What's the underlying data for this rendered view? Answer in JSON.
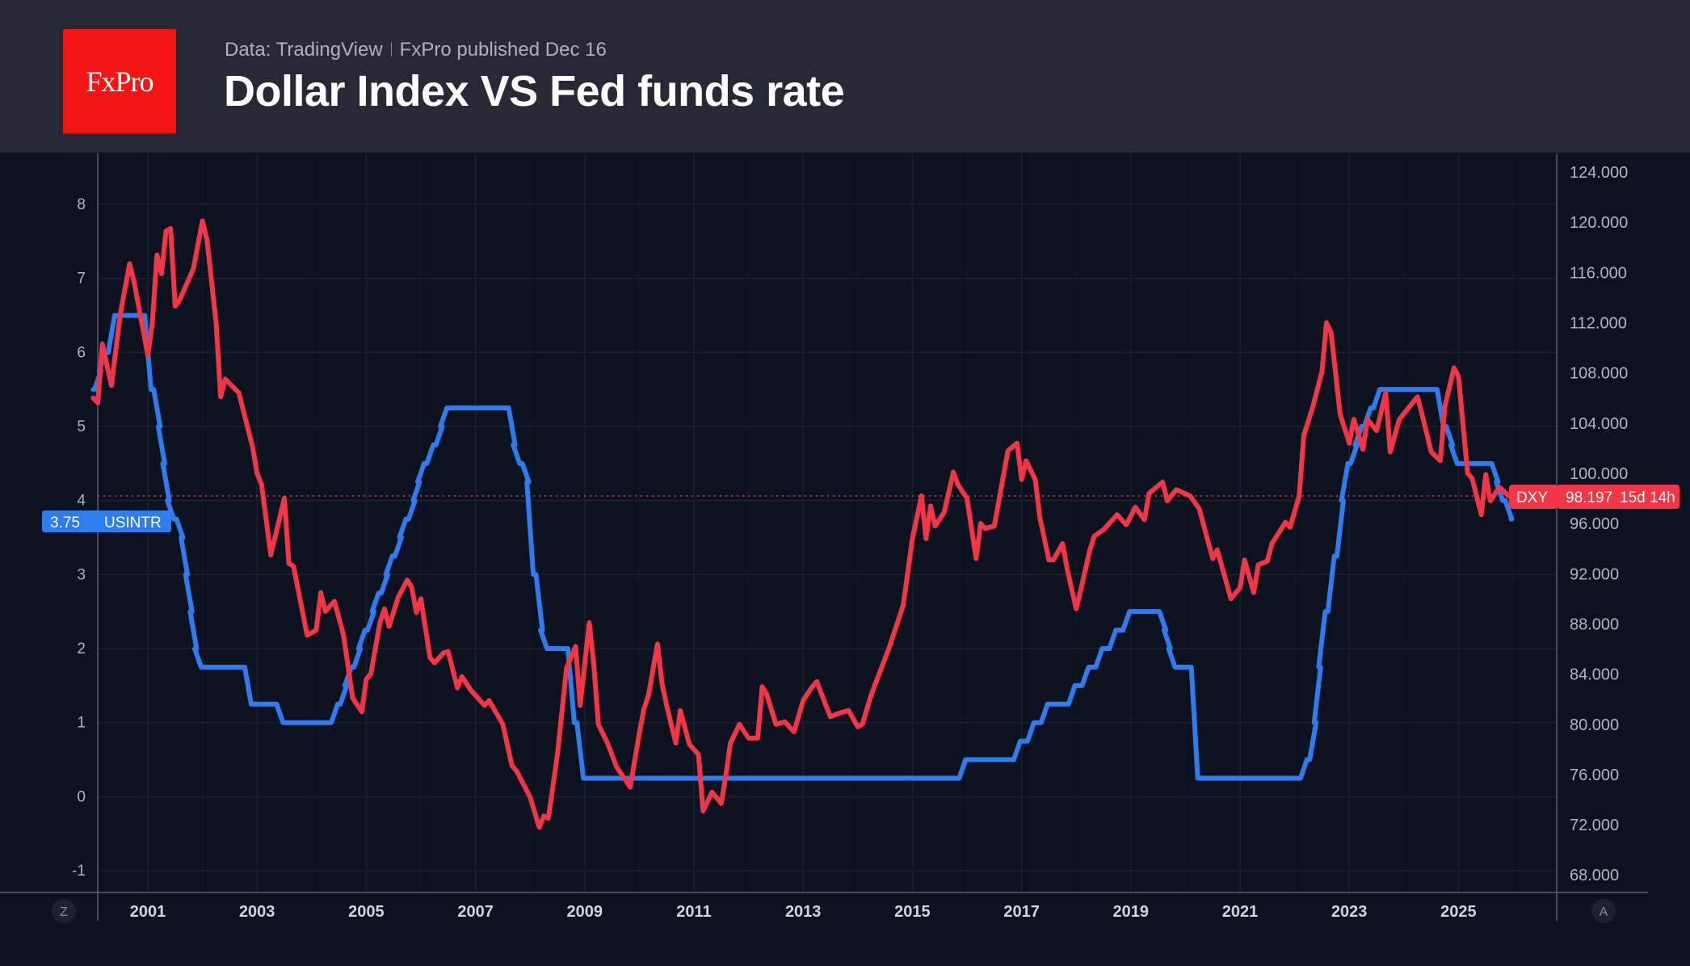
{
  "header": {
    "logo_text": "FxPro",
    "source": "Data: TradingView",
    "published": "FxPro published Dec 16",
    "title": "Dollar Index VS Fed funds rate"
  },
  "controls": {
    "left_button": "Z",
    "right_button": "A"
  },
  "chart_data": {
    "type": "line",
    "title": "Dollar Index VS Fed funds rate",
    "x_ticks": [
      "2001",
      "2003",
      "2005",
      "2007",
      "2009",
      "2011",
      "2013",
      "2015",
      "2017",
      "2019",
      "2021",
      "2023",
      "2025"
    ],
    "left_axis": {
      "ticks": [
        "-1",
        "0",
        "1",
        "2",
        "3",
        "4",
        "5",
        "6",
        "7",
        "8"
      ],
      "range": [
        -1.3,
        8.9
      ]
    },
    "right_axis": {
      "ticks": [
        "68.000",
        "72.000",
        "76.000",
        "80.000",
        "84.000",
        "88.000",
        "92.000",
        "96.000",
        "100.000",
        "104.000",
        "108.000",
        "112.000",
        "116.000",
        "120.000",
        "124.000"
      ],
      "range": [
        67,
        126
      ]
    },
    "grid": true,
    "colors": {
      "USINTR": "#2f7bf0",
      "DXY": "#f23645"
    },
    "series": [
      {
        "name": "USINTR",
        "axis": "left",
        "step": true,
        "last_value_label": "3.75",
        "points": [
          [
            "2000-01",
            5.5
          ],
          [
            "2000-02",
            5.75
          ],
          [
            "2000-03",
            6.0
          ],
          [
            "2000-05",
            6.5
          ],
          [
            "2001-01",
            5.5
          ],
          [
            "2001-03",
            5.0
          ],
          [
            "2001-04",
            4.5
          ],
          [
            "2001-05",
            4.0
          ],
          [
            "2001-06",
            3.75
          ],
          [
            "2001-08",
            3.5
          ],
          [
            "2001-09",
            3.0
          ],
          [
            "2001-10",
            2.5
          ],
          [
            "2001-11",
            2.0
          ],
          [
            "2001-12",
            1.75
          ],
          [
            "2002-11",
            1.25
          ],
          [
            "2003-06",
            1.0
          ],
          [
            "2004-06",
            1.25
          ],
          [
            "2004-08",
            1.5
          ],
          [
            "2004-09",
            1.75
          ],
          [
            "2004-11",
            2.0
          ],
          [
            "2004-12",
            2.25
          ],
          [
            "2005-02",
            2.5
          ],
          [
            "2005-03",
            2.75
          ],
          [
            "2005-05",
            3.0
          ],
          [
            "2005-06",
            3.25
          ],
          [
            "2005-08",
            3.5
          ],
          [
            "2005-09",
            3.75
          ],
          [
            "2005-11",
            4.0
          ],
          [
            "2005-12",
            4.25
          ],
          [
            "2006-01",
            4.5
          ],
          [
            "2006-03",
            4.75
          ],
          [
            "2006-05",
            5.0
          ],
          [
            "2006-06",
            5.25
          ],
          [
            "2007-09",
            4.75
          ],
          [
            "2007-10",
            4.5
          ],
          [
            "2007-12",
            4.25
          ],
          [
            "2008-01",
            3.0
          ],
          [
            "2008-03",
            2.25
          ],
          [
            "2008-04",
            2.0
          ],
          [
            "2008-10",
            1.0
          ],
          [
            "2008-12",
            0.25
          ],
          [
            "2015-12",
            0.5
          ],
          [
            "2016-12",
            0.75
          ],
          [
            "2017-03",
            1.0
          ],
          [
            "2017-06",
            1.25
          ],
          [
            "2017-12",
            1.5
          ],
          [
            "2018-03",
            1.75
          ],
          [
            "2018-06",
            2.0
          ],
          [
            "2018-09",
            2.25
          ],
          [
            "2018-12",
            2.5
          ],
          [
            "2019-08",
            2.25
          ],
          [
            "2019-09",
            2.0
          ],
          [
            "2019-10",
            1.75
          ],
          [
            "2020-03",
            0.25
          ],
          [
            "2022-03",
            0.5
          ],
          [
            "2022-05",
            1.0
          ],
          [
            "2022-06",
            1.75
          ],
          [
            "2022-07",
            2.5
          ],
          [
            "2022-09",
            3.25
          ],
          [
            "2022-11",
            4.0
          ],
          [
            "2022-12",
            4.5
          ],
          [
            "2023-02",
            4.75
          ],
          [
            "2023-03",
            5.0
          ],
          [
            "2023-05",
            5.25
          ],
          [
            "2023-07",
            5.5
          ],
          [
            "2024-09",
            5.0
          ],
          [
            "2024-11",
            4.75
          ],
          [
            "2024-12",
            4.5
          ],
          [
            "2025-09",
            4.25
          ],
          [
            "2025-10",
            4.0
          ],
          [
            "2025-12",
            3.75
          ]
        ]
      },
      {
        "name": "DXY",
        "axis": "right",
        "last_value_label": "98.197",
        "countdown": "15d 14h",
        "last_value": 98.197,
        "points": [
          [
            "2000-01",
            106
          ],
          [
            "2000-02",
            105.6
          ],
          [
            "2000-03",
            110.3
          ],
          [
            "2000-05",
            107
          ],
          [
            "2000-07",
            112.8
          ],
          [
            "2000-09",
            116.7
          ],
          [
            "2000-10",
            115.2
          ],
          [
            "2001-01",
            109.4
          ],
          [
            "2001-02",
            112
          ],
          [
            "2001-03",
            117.4
          ],
          [
            "2001-04",
            115.9
          ],
          [
            "2001-05",
            119.3
          ],
          [
            "2001-06",
            119.5
          ],
          [
            "2001-07",
            113.3
          ],
          [
            "2001-08",
            113.8
          ],
          [
            "2001-11",
            116.3
          ],
          [
            "2002-01",
            120.1
          ],
          [
            "2002-02",
            118.6
          ],
          [
            "2002-04",
            112
          ],
          [
            "2002-05",
            106.1
          ],
          [
            "2002-06",
            107.5
          ],
          [
            "2002-09",
            106.4
          ],
          [
            "2002-12",
            102.1
          ],
          [
            "2003-01",
            100
          ],
          [
            "2003-02",
            99.1
          ],
          [
            "2003-04",
            93.5
          ],
          [
            "2003-07",
            98
          ],
          [
            "2003-08",
            92.8
          ],
          [
            "2003-09",
            92.6
          ],
          [
            "2003-12",
            87.1
          ],
          [
            "2004-02",
            87.5
          ],
          [
            "2004-03",
            90.5
          ],
          [
            "2004-04",
            89
          ],
          [
            "2004-06",
            89.8
          ],
          [
            "2004-08",
            87.1
          ],
          [
            "2004-10",
            82.1
          ],
          [
            "2004-12",
            81
          ],
          [
            "2005-01",
            83.6
          ],
          [
            "2005-02",
            84
          ],
          [
            "2005-04",
            88.1
          ],
          [
            "2005-05",
            89.2
          ],
          [
            "2005-06",
            87.8
          ],
          [
            "2005-08",
            90.1
          ],
          [
            "2005-10",
            91.5
          ],
          [
            "2005-11",
            90.9
          ],
          [
            "2005-12",
            88.9
          ],
          [
            "2006-01",
            90
          ],
          [
            "2006-03",
            85.3
          ],
          [
            "2006-04",
            84.9
          ],
          [
            "2006-06",
            85.7
          ],
          [
            "2006-07",
            85.8
          ],
          [
            "2006-09",
            82.9
          ],
          [
            "2006-10",
            83.8
          ],
          [
            "2006-12",
            82.7
          ],
          [
            "2007-03",
            81.5
          ],
          [
            "2007-04",
            81.9
          ],
          [
            "2007-07",
            80
          ],
          [
            "2007-09",
            76.7
          ],
          [
            "2007-10",
            76.3
          ],
          [
            "2008-01",
            74.2
          ],
          [
            "2008-03",
            71.8
          ],
          [
            "2008-04",
            72.7
          ],
          [
            "2008-05",
            72.5
          ],
          [
            "2008-07",
            77.6
          ],
          [
            "2008-09",
            84.5
          ],
          [
            "2008-11",
            86.2
          ],
          [
            "2008-12",
            81.5
          ],
          [
            "2009-02",
            88.1
          ],
          [
            "2009-03",
            84.7
          ],
          [
            "2009-04",
            80
          ],
          [
            "2009-06",
            78.5
          ],
          [
            "2009-08",
            76.6
          ],
          [
            "2009-11",
            75
          ],
          [
            "2010-01",
            79.3
          ],
          [
            "2010-02",
            81.2
          ],
          [
            "2010-03",
            82.3
          ],
          [
            "2010-05",
            86.4
          ],
          [
            "2010-06",
            83.2
          ],
          [
            "2010-07",
            81.5
          ],
          [
            "2010-09",
            78.5
          ],
          [
            "2010-10",
            81.1
          ],
          [
            "2010-12",
            78.4
          ],
          [
            "2011-02",
            77.6
          ],
          [
            "2011-03",
            73.1
          ],
          [
            "2011-05",
            74.6
          ],
          [
            "2011-07",
            73.7
          ],
          [
            "2011-08",
            75.9
          ],
          [
            "2011-09",
            78.5
          ],
          [
            "2011-11",
            80
          ],
          [
            "2012-01",
            78.9
          ],
          [
            "2012-03",
            78.9
          ],
          [
            "2012-04",
            83
          ],
          [
            "2012-05",
            82.4
          ],
          [
            "2012-07",
            80
          ],
          [
            "2012-09",
            80.2
          ],
          [
            "2012-11",
            79.4
          ],
          [
            "2013-01",
            81.9
          ],
          [
            "2013-03",
            83
          ],
          [
            "2013-04",
            83.4
          ],
          [
            "2013-06",
            81.5
          ],
          [
            "2013-07",
            80.6
          ],
          [
            "2013-09",
            80.9
          ],
          [
            "2013-11",
            81.1
          ],
          [
            "2014-01",
            79.8
          ],
          [
            "2014-02",
            80
          ],
          [
            "2014-04",
            82.4
          ],
          [
            "2014-06",
            84.3
          ],
          [
            "2014-08",
            86.2
          ],
          [
            "2014-11",
            89.5
          ],
          [
            "2015-01",
            94.8
          ],
          [
            "2015-03",
            98.2
          ],
          [
            "2015-04",
            94.8
          ],
          [
            "2015-05",
            97.4
          ],
          [
            "2015-06",
            95.8
          ],
          [
            "2015-08",
            96.9
          ],
          [
            "2015-10",
            100.1
          ],
          [
            "2015-11",
            99.1
          ],
          [
            "2016-01",
            98
          ],
          [
            "2016-03",
            93.2
          ],
          [
            "2016-04",
            96
          ],
          [
            "2016-05",
            95.6
          ],
          [
            "2016-07",
            95.8
          ],
          [
            "2016-10",
            101.8
          ],
          [
            "2016-12",
            102.4
          ],
          [
            "2017-01",
            99.5
          ],
          [
            "2017-02",
            101
          ],
          [
            "2017-04",
            99.5
          ],
          [
            "2017-05",
            96.5
          ],
          [
            "2017-07",
            93.1
          ],
          [
            "2017-08",
            93.1
          ],
          [
            "2017-10",
            94.4
          ],
          [
            "2017-11",
            92.4
          ],
          [
            "2018-01",
            89.2
          ],
          [
            "2018-02",
            90.7
          ],
          [
            "2018-04",
            93.9
          ],
          [
            "2018-05",
            95
          ],
          [
            "2018-07",
            95.5
          ],
          [
            "2018-10",
            96.7
          ],
          [
            "2018-12",
            95.9
          ],
          [
            "2019-02",
            97.3
          ],
          [
            "2019-04",
            96.3
          ],
          [
            "2019-05",
            98.4
          ],
          [
            "2019-08",
            99.3
          ],
          [
            "2019-09",
            97.8
          ],
          [
            "2019-11",
            98.7
          ],
          [
            "2020-02",
            98.2
          ],
          [
            "2020-04",
            97.2
          ],
          [
            "2020-07",
            93.2
          ],
          [
            "2020-08",
            93.9
          ],
          [
            "2020-11",
            90
          ],
          [
            "2021-01",
            90.9
          ],
          [
            "2021-02",
            93.1
          ],
          [
            "2021-04",
            90.5
          ],
          [
            "2021-05",
            92.7
          ],
          [
            "2021-07",
            93
          ],
          [
            "2021-08",
            94.4
          ],
          [
            "2021-11",
            96.1
          ],
          [
            "2021-12",
            95.7
          ],
          [
            "2022-02",
            98.2
          ],
          [
            "2022-03",
            103
          ],
          [
            "2022-05",
            105.3
          ],
          [
            "2022-07",
            108.1
          ],
          [
            "2022-08",
            112
          ],
          [
            "2022-09",
            111.2
          ],
          [
            "2022-11",
            104.7
          ],
          [
            "2023-01",
            102.4
          ],
          [
            "2023-02",
            104.3
          ],
          [
            "2023-04",
            101.9
          ],
          [
            "2023-05",
            104.3
          ],
          [
            "2023-07",
            103.4
          ],
          [
            "2023-09",
            106.4
          ],
          [
            "2023-10",
            101.7
          ],
          [
            "2023-12",
            104.3
          ],
          [
            "2024-02",
            105.2
          ],
          [
            "2024-04",
            106.1
          ],
          [
            "2024-05",
            104.7
          ],
          [
            "2024-07",
            101.7
          ],
          [
            "2024-09",
            101
          ],
          [
            "2024-10",
            105.3
          ],
          [
            "2024-12",
            108.4
          ],
          [
            "2025-01",
            107.7
          ],
          [
            "2025-03",
            100
          ],
          [
            "2025-04",
            99.6
          ],
          [
            "2025-06",
            96.7
          ],
          [
            "2025-07",
            99.9
          ],
          [
            "2025-08",
            97.8
          ],
          [
            "2025-10",
            98.9
          ],
          [
            "2025-12",
            98.2
          ]
        ]
      }
    ]
  }
}
